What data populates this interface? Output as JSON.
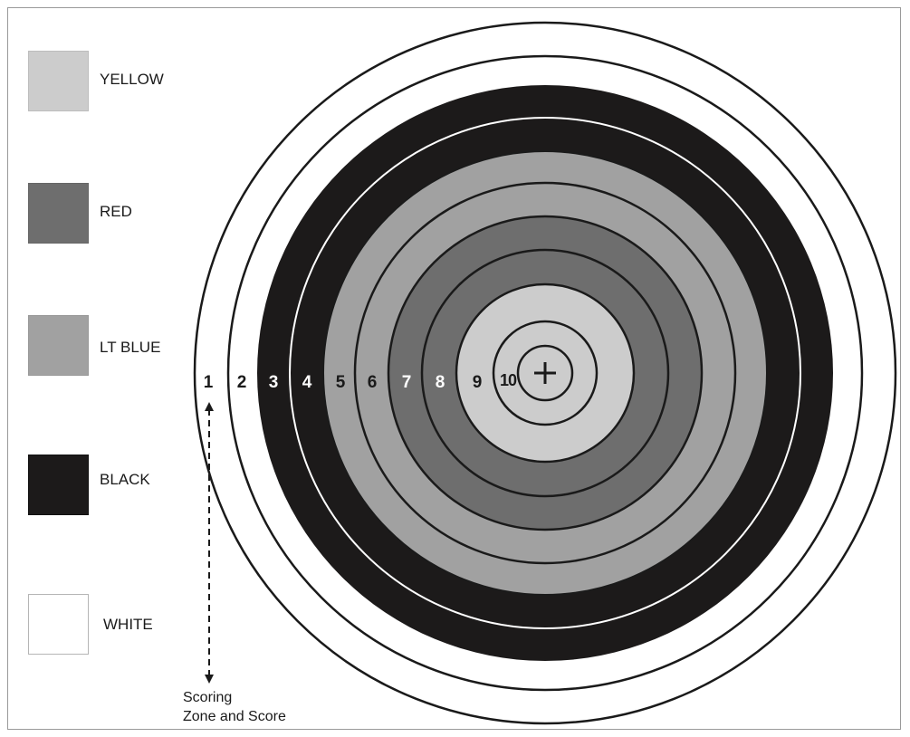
{
  "legend": [
    {
      "label": "YELLOW",
      "color": "#cccccc"
    },
    {
      "label": "RED",
      "color": "#6e6e6e"
    },
    {
      "label": "LT BLUE",
      "color": "#a1a1a1"
    },
    {
      "label": "BLACK",
      "color": "#1c1a1a"
    },
    {
      "label": "WHITE",
      "color": "#ffffff"
    }
  ],
  "zones": [
    {
      "number": "1",
      "color": "white",
      "text_color": "#1a1a1a"
    },
    {
      "number": "2",
      "color": "white",
      "text_color": "#1a1a1a"
    },
    {
      "number": "3",
      "color": "black",
      "text_color": "#ffffff"
    },
    {
      "number": "4",
      "color": "black",
      "text_color": "#ffffff"
    },
    {
      "number": "5",
      "color": "lt blue",
      "text_color": "#1a1a1a"
    },
    {
      "number": "6",
      "color": "lt blue",
      "text_color": "#1a1a1a"
    },
    {
      "number": "7",
      "color": "red",
      "text_color": "#ffffff"
    },
    {
      "number": "8",
      "color": "red",
      "text_color": "#ffffff"
    },
    {
      "number": "9",
      "color": "yellow",
      "text_color": "#1a1a1a"
    },
    {
      "number": "10",
      "color": "yellow",
      "text_color": "#1a1a1a"
    }
  ],
  "center_mark": "+",
  "caption": {
    "line1": "Scoring",
    "line2": "Zone and Score"
  }
}
